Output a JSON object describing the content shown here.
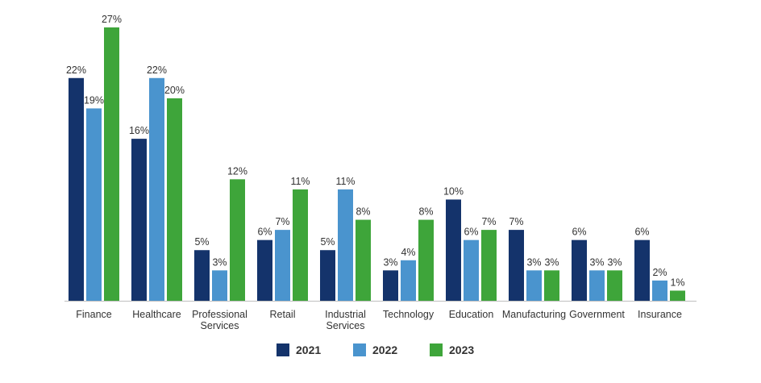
{
  "chart_data": {
    "type": "bar",
    "categories": [
      [
        "Finance"
      ],
      [
        "Healthcare"
      ],
      [
        "Professional",
        "Services"
      ],
      [
        "Retail"
      ],
      [
        "Industrial",
        "Services"
      ],
      [
        "Technology"
      ],
      [
        "Education"
      ],
      [
        "Manufacturing"
      ],
      [
        "Government"
      ],
      [
        "Insurance"
      ]
    ],
    "series": [
      {
        "name": "2021",
        "color": "#14336b",
        "values": [
          22,
          16,
          5,
          6,
          5,
          3,
          10,
          7,
          6,
          6
        ]
      },
      {
        "name": "2022",
        "color": "#4a94ce",
        "values": [
          19,
          22,
          3,
          7,
          11,
          4,
          6,
          3,
          3,
          2
        ]
      },
      {
        "name": "2023",
        "color": "#3ea53a",
        "values": [
          27,
          20,
          12,
          11,
          8,
          8,
          7,
          3,
          3,
          1
        ]
      }
    ],
    "value_suffix": "%",
    "ylim": [
      0,
      27
    ],
    "grid": false,
    "legend": "bottom-center",
    "title": "",
    "xlabel": "",
    "ylabel": ""
  }
}
